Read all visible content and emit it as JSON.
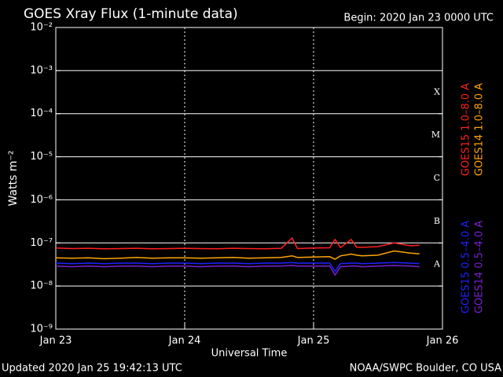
{
  "chart_data": {
    "type": "line",
    "title": "GOES Xray Flux (1-minute data)",
    "subtitle": "Begin:  2020 Jan 23 0000 UTC",
    "ylabel": "Watts m⁻²",
    "xlabel": "Universal Time",
    "footer_left": "Updated 2020 Jan 25 19:42:13 UTC",
    "footer_right": "NOAA/SWPC Boulder, CO USA",
    "log_y": true,
    "grid": true,
    "ylim": [
      1e-09,
      0.01
    ],
    "yticks": [
      {
        "value": 1e-09,
        "label": "10⁻⁹"
      },
      {
        "value": 1e-08,
        "label": "10⁻⁸"
      },
      {
        "value": 1e-07,
        "label": "10⁻⁷"
      },
      {
        "value": 1e-06,
        "label": "10⁻⁶"
      },
      {
        "value": 1e-05,
        "label": "10⁻⁵"
      },
      {
        "value": 0.0001,
        "label": "10⁻⁴"
      },
      {
        "value": 0.001,
        "label": "10⁻³"
      },
      {
        "value": 0.01,
        "label": "10⁻²"
      }
    ],
    "xlim": [
      "2020-01-23T00:00",
      "2020-01-26T00:00"
    ],
    "xticks": [
      {
        "value": "2020-01-23T00:00",
        "label": "Jan 23"
      },
      {
        "value": "2020-01-24T00:00",
        "label": "Jan 24"
      },
      {
        "value": "2020-01-25T00:00",
        "label": "Jan 25"
      },
      {
        "value": "2020-01-26T00:00",
        "label": "Jan 26"
      }
    ],
    "flare_classes": [
      {
        "value": 1e-08,
        "label": "A"
      },
      {
        "value": 1e-07,
        "label": "B"
      },
      {
        "value": 1e-06,
        "label": "C"
      },
      {
        "value": 1e-05,
        "label": "M"
      },
      {
        "value": 0.0001,
        "label": "X"
      }
    ],
    "x": [
      "2020-01-23T00:00",
      "2020-01-23T03:00",
      "2020-01-23T06:00",
      "2020-01-23T09:00",
      "2020-01-23T12:00",
      "2020-01-23T15:00",
      "2020-01-23T18:00",
      "2020-01-23T21:00",
      "2020-01-24T00:00",
      "2020-01-24T03:00",
      "2020-01-24T06:00",
      "2020-01-24T09:00",
      "2020-01-24T12:00",
      "2020-01-24T15:00",
      "2020-01-24T18:00",
      "2020-01-24T20:00",
      "2020-01-24T21:00",
      "2020-01-25T00:00",
      "2020-01-25T03:00",
      "2020-01-25T04:00",
      "2020-01-25T05:00",
      "2020-01-25T07:00",
      "2020-01-25T08:00",
      "2020-01-25T09:00",
      "2020-01-25T12:00",
      "2020-01-25T15:00",
      "2020-01-25T18:00",
      "2020-01-25T19:42"
    ],
    "series": [
      {
        "name": "GOES15 1.0–8.0 A",
        "color": "#ff2020",
        "legend_column": 0,
        "values": [
          7.6e-08,
          7.4e-08,
          7.5e-08,
          7.3e-08,
          7.4e-08,
          7.5e-08,
          7.3e-08,
          7.4e-08,
          7.5e-08,
          7.4e-08,
          7.3e-08,
          7.5e-08,
          7.4e-08,
          7.3e-08,
          7.5e-08,
          1.3e-07,
          7.4e-08,
          7.6e-08,
          7.7e-08,
          1.2e-07,
          7.8e-08,
          1.2e-07,
          8e-08,
          7.9e-08,
          8.2e-08,
          1e-07,
          8.6e-08,
          8.8e-08
        ]
      },
      {
        "name": "GOES14 1.0–8.0 A",
        "color": "#ffa500",
        "legend_column": 1,
        "values": [
          4.5e-08,
          4.4e-08,
          4.5e-08,
          4.3e-08,
          4.4e-08,
          4.6e-08,
          4.4e-08,
          4.5e-08,
          4.5e-08,
          4.4e-08,
          4.5e-08,
          4.6e-08,
          4.4e-08,
          4.5e-08,
          4.6e-08,
          5e-08,
          4.6e-08,
          4.7e-08,
          4.8e-08,
          4.2e-08,
          5e-08,
          5.5e-08,
          5.2e-08,
          5e-08,
          5.2e-08,
          6.5e-08,
          5.8e-08,
          5.6e-08
        ]
      },
      {
        "name": "GOES15 0.5–4.0 A",
        "color": "#2020ff",
        "legend_column": 0,
        "values": [
          3.4e-08,
          3.3e-08,
          3.4e-08,
          3.3e-08,
          3.4e-08,
          3.4e-08,
          3.3e-08,
          3.4e-08,
          3.4e-08,
          3.3e-08,
          3.4e-08,
          3.4e-08,
          3.3e-08,
          3.4e-08,
          3.4e-08,
          3.5e-08,
          3.4e-08,
          3.4e-08,
          3.4e-08,
          2.2e-08,
          3.3e-08,
          3.4e-08,
          3.4e-08,
          3.3e-08,
          3.4e-08,
          3.5e-08,
          3.4e-08,
          3.3e-08
        ]
      },
      {
        "name": "GOES14 0.5–4.0 A",
        "color": "#7a20d0",
        "legend_column": 1,
        "values": [
          2.9e-08,
          2.8e-08,
          2.9e-08,
          2.8e-08,
          2.9e-08,
          2.9e-08,
          2.8e-08,
          2.9e-08,
          2.9e-08,
          2.8e-08,
          2.9e-08,
          2.9e-08,
          2.8e-08,
          2.9e-08,
          2.9e-08,
          3e-08,
          2.9e-08,
          2.9e-08,
          2.9e-08,
          1.8e-08,
          2.8e-08,
          2.9e-08,
          2.9e-08,
          2.8e-08,
          2.9e-08,
          3e-08,
          2.9e-08,
          2.8e-08
        ]
      }
    ]
  }
}
